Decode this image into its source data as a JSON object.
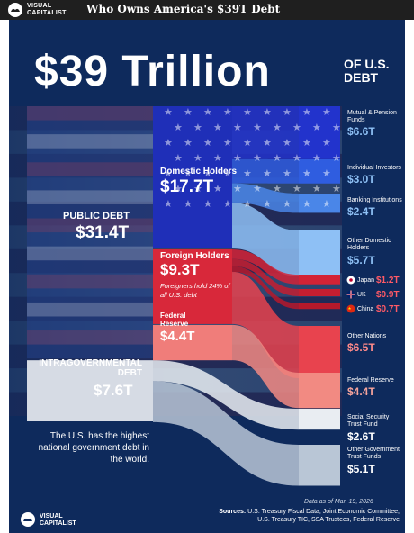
{
  "header": {
    "brand_line1": "VISUAL",
    "brand_line2": "CAPITALIST",
    "title": "Who Owns America's $39T Debt"
  },
  "poster": {
    "big_number": "$39 Trillion",
    "big_suffix_line1": "OF U.S.",
    "big_suffix_line2": "DEBT",
    "note": "Foreigners hold 24% of all U.S. debt",
    "tagline": "The U.S. has the highest national government debt in the world.",
    "as_of": "Data as of Mar. 19, 2026",
    "sources_label": "Sources:",
    "sources_line1": "U.S. Treasury Fiscal Data, Joint Economic Committee,",
    "sources_line2": "U.S. Treasury TIC, SSA Trustees, Federal Reserve",
    "footer_brand1": "VISUAL",
    "footer_brand2": "CAPITALIST"
  },
  "chart_data": {
    "type": "sankey",
    "unit": "trillion USD",
    "total": {
      "label": "$39 Trillion",
      "value": 39
    },
    "level1": [
      {
        "key": "public",
        "name": "PUBLIC DEBT",
        "label": "$31.4T",
        "value": 31.4
      },
      {
        "key": "intra",
        "name": "INTRAGOVERNMENTAL DEBT",
        "label": "$7.6T",
        "value": 7.6
      }
    ],
    "level2": [
      {
        "key": "domestic",
        "parent": "public",
        "name": "Domestic Holders",
        "label": "$17.7T",
        "value": 17.7
      },
      {
        "key": "foreign",
        "parent": "public",
        "name": "Foreign Holders",
        "label": "$9.3T",
        "value": 9.3
      },
      {
        "key": "fed",
        "parent": "public",
        "name": "Federal Reserve",
        "label": "$4.4T",
        "value": 4.4
      }
    ],
    "leaves": [
      {
        "key": "mutual",
        "parent": "domestic",
        "name": "Mutual & Pension Funds",
        "label": "$6.6T",
        "value": 6.6,
        "color": "#2233cc"
      },
      {
        "key": "individual",
        "parent": "domestic",
        "name": "Individual Investors",
        "label": "$3.0T",
        "value": 3.0,
        "color": "#2f5de0"
      },
      {
        "key": "banking",
        "parent": "domestic",
        "name": "Banking Institutions",
        "label": "$2.4T",
        "value": 2.4,
        "color": "#4a86e8"
      },
      {
        "key": "otherdom",
        "parent": "domestic",
        "name": "Other Domestic Holders",
        "label": "$5.7T",
        "value": 5.7,
        "color": "#8ec0f5"
      },
      {
        "key": "japan",
        "parent": "foreign",
        "name": "Japan",
        "label": "$1.2T",
        "value": 1.2,
        "color": "#d32336"
      },
      {
        "key": "uk",
        "parent": "foreign",
        "name": "UK",
        "label": "$0.9T",
        "value": 0.9,
        "color": "#c41e30"
      },
      {
        "key": "china",
        "parent": "foreign",
        "name": "China",
        "label": "$0.7T",
        "value": 0.7,
        "color": "#b5192b"
      },
      {
        "key": "othernations",
        "parent": "foreign",
        "name": "Other Nations",
        "label": "$6.5T",
        "value": 6.5,
        "color": "#e8434e"
      },
      {
        "key": "fedleaf",
        "parent": "fed",
        "name": "Federal Reserve",
        "label": "$4.4T",
        "value": 4.4,
        "color": "#f28a82"
      },
      {
        "key": "ssa",
        "parent": "intra",
        "name": "Social Security Trust Fund",
        "label": "$2.6T",
        "value": 2.6,
        "color": "#e9edf2"
      },
      {
        "key": "othergov",
        "parent": "intra",
        "name": "Other Government Trust Funds",
        "label": "$5.1T",
        "value": 5.1,
        "color": "#b9c6d6"
      }
    ],
    "colors": {
      "background": "#0e2a5c",
      "domestic": "#1f2fb8",
      "foreign": "#d8283a",
      "fed": "#f07d7a",
      "intra": "#f2f4f7",
      "accent": "#7fb2f0"
    }
  }
}
